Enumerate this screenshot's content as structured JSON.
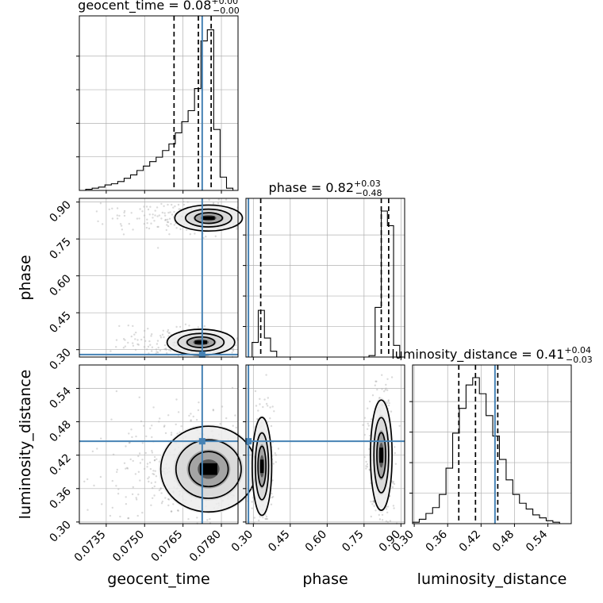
{
  "chart_data": {
    "type": "corner",
    "parameters": [
      {
        "key": "geocent_time",
        "label": "geocent_time",
        "range": [
          0.07245,
          0.07865
        ],
        "ticks": [
          0.0735,
          0.075,
          0.0765,
          0.078
        ],
        "tick_labels": [
          "0.0735",
          "0.0750",
          "0.0765",
          "0.0780"
        ],
        "truth": 0.07725,
        "quantiles": [
          0.07615,
          0.0771,
          0.0776
        ],
        "title_prefix": "geocent_time = ",
        "title_value": "0.08",
        "title_plus": "+0.00",
        "title_minus": "−0.00"
      },
      {
        "key": "phase",
        "label": "phase",
        "range": [
          0.27,
          0.915
        ],
        "ticks": [
          0.3,
          0.45,
          0.6,
          0.75,
          0.9
        ],
        "tick_labels": [
          "0.30",
          "0.45",
          "0.60",
          "0.75",
          "0.90"
        ],
        "truth": 0.28,
        "quantiles": [
          0.33,
          0.82,
          0.85
        ],
        "title_prefix": "phase = ",
        "title_value": "0.82",
        "title_plus": "+0.03",
        "title_minus": "−0.48"
      },
      {
        "key": "luminosity_distance",
        "label": "luminosity_distance",
        "range": [
          0.297,
          0.582
        ],
        "ticks": [
          0.3,
          0.36,
          0.42,
          0.48,
          0.54
        ],
        "tick_labels": [
          "0.30",
          "0.36",
          "0.42",
          "0.48",
          "0.54"
        ],
        "truth": 0.445,
        "quantiles": [
          0.38,
          0.41,
          0.45
        ],
        "title_prefix": "luminosity_distance = ",
        "title_value": "0.41",
        "title_plus": "+0.04",
        "title_minus": "−0.03"
      }
    ],
    "histograms": {
      "geocent_time": {
        "bins": [
          0.07245,
          0.0727,
          0.07295,
          0.0732,
          0.07345,
          0.0737,
          0.07395,
          0.0742,
          0.07445,
          0.0747,
          0.07495,
          0.0752,
          0.07545,
          0.0757,
          0.07595,
          0.0762,
          0.07645,
          0.0767,
          0.07695,
          0.0772,
          0.07745,
          0.0777,
          0.07795,
          0.0782,
          0.07845,
          0.07865
        ],
        "counts": [
          0,
          1,
          2,
          3,
          5,
          6,
          8,
          11,
          14,
          18,
          22,
          26,
          30,
          36,
          42,
          52,
          62,
          72,
          92,
          135,
          145,
          55,
          12,
          2,
          0
        ]
      },
      "phase": {
        "bins": [
          0.27,
          0.295,
          0.32,
          0.345,
          0.37,
          0.395,
          0.42,
          0.445,
          0.47,
          0.495,
          0.52,
          0.545,
          0.57,
          0.595,
          0.62,
          0.645,
          0.67,
          0.695,
          0.72,
          0.745,
          0.77,
          0.795,
          0.82,
          0.845,
          0.87,
          0.895,
          0.915
        ],
        "counts": [
          0,
          20,
          64,
          26,
          8,
          0,
          0,
          0,
          0,
          0,
          0,
          0,
          0,
          0,
          0,
          0,
          0,
          0,
          0,
          0,
          2,
          68,
          200,
          180,
          16,
          0
        ]
      },
      "luminosity_distance": {
        "bins": [
          0.297,
          0.309,
          0.321,
          0.333,
          0.345,
          0.357,
          0.369,
          0.381,
          0.393,
          0.405,
          0.417,
          0.429,
          0.441,
          0.453,
          0.465,
          0.477,
          0.489,
          0.501,
          0.513,
          0.525,
          0.537,
          0.549,
          0.561,
          0.573,
          0.582
        ],
        "counts": [
          1,
          3,
          7,
          11,
          20,
          38,
          62,
          79,
          95,
          100,
          89,
          74,
          60,
          44,
          30,
          20,
          14,
          10,
          6,
          4,
          2,
          1,
          0,
          0
        ]
      }
    },
    "pairs": [
      {
        "x": "geocent_time",
        "y": "phase",
        "blobs": [
          {
            "cx": 0.0775,
            "cy": 0.835,
            "sx": 0.0006,
            "sy": 0.024,
            "w": 0.55,
            "tail_to": 0.0731
          },
          {
            "cx": 0.0772,
            "cy": 0.33,
            "sx": 0.0006,
            "sy": 0.024,
            "w": 0.45,
            "tail_to": 0.074
          }
        ]
      },
      {
        "x": "geocent_time",
        "y": "luminosity_distance",
        "blobs": [
          {
            "cx": 0.0775,
            "cy": 0.395,
            "sx": 0.00085,
            "sy": 0.035,
            "w": 1.0,
            "tail_to": 0.073
          }
        ]
      },
      {
        "x": "phase",
        "y": "luminosity_distance",
        "blobs": [
          {
            "cx": 0.335,
            "cy": 0.4,
            "sx": 0.018,
            "sy": 0.04,
            "w": 0.45,
            "tail_to": 0.335
          },
          {
            "cx": 0.82,
            "cy": 0.42,
            "sx": 0.02,
            "sy": 0.045,
            "w": 0.55,
            "tail_to": 0.82
          }
        ]
      }
    ],
    "grid": true
  }
}
